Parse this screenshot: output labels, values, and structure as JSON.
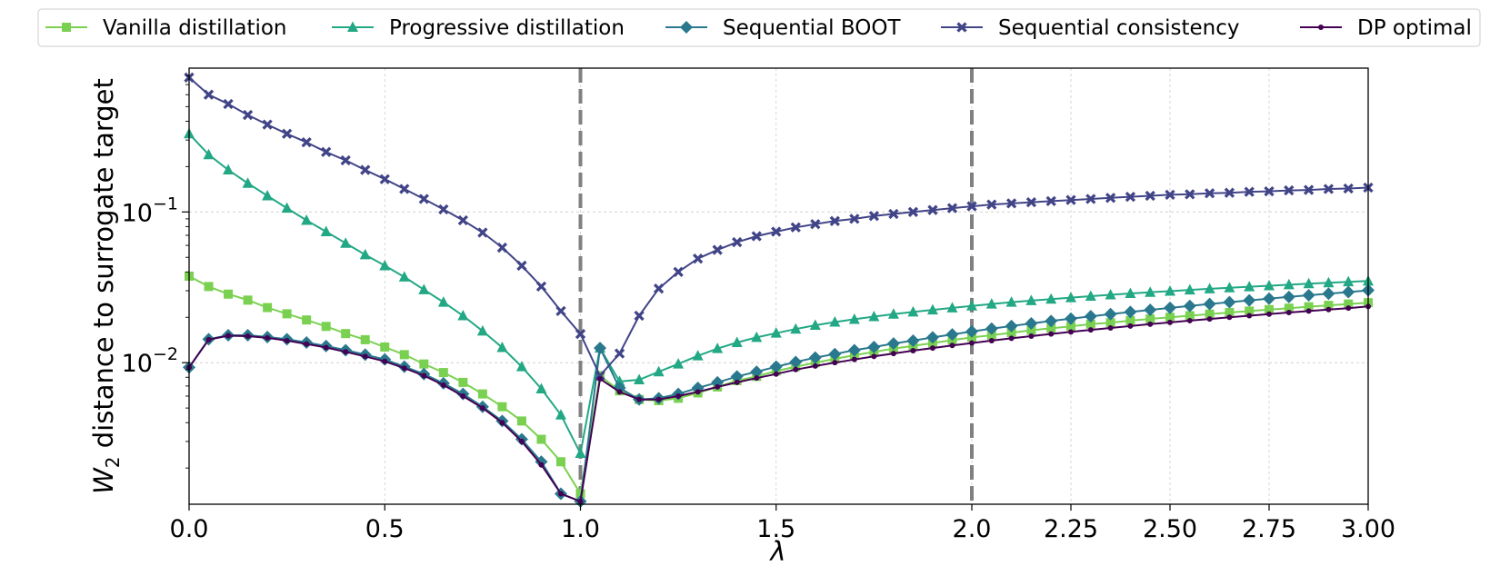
{
  "chart_data": {
    "type": "line",
    "title": "",
    "xlabel": "λ",
    "ylabel_main": "W",
    "ylabel_sub": "2",
    "ylabel_rest": " distance to surrogate target",
    "y_scale": "log",
    "ylim": [
      0.00115,
      0.9
    ],
    "grid": true,
    "legend_position": "top",
    "x_tick_labels": [
      "0.0",
      "0.5",
      "1.0",
      "1.5",
      "2.0",
      "2.25",
      "2.50",
      "2.75",
      "3.00"
    ],
    "y_ticks": [
      {
        "value": 0.1,
        "base": "10",
        "exp": "−1"
      },
      {
        "value": 0.01,
        "base": "10",
        "exp": "−2"
      }
    ],
    "vlines": [
      1.0,
      2.0
    ],
    "x": [
      0.0,
      0.05,
      0.1,
      0.15,
      0.2,
      0.25,
      0.3,
      0.35,
      0.4,
      0.45,
      0.5,
      0.55,
      0.6,
      0.65,
      0.7,
      0.75,
      0.8,
      0.85,
      0.9,
      0.95,
      1.0,
      1.05,
      1.1,
      1.15,
      1.2,
      1.25,
      1.3,
      1.35,
      1.4,
      1.45,
      1.5,
      1.55,
      1.6,
      1.65,
      1.7,
      1.75,
      1.8,
      1.85,
      1.9,
      1.95,
      2.0,
      2.05,
      2.1,
      2.15,
      2.2,
      2.25,
      2.3,
      2.35,
      2.4,
      2.45,
      2.5,
      2.55,
      2.6,
      2.65,
      2.7,
      2.75,
      2.8,
      2.85,
      2.9,
      2.95,
      3.0
    ],
    "series": [
      {
        "name": "Vanilla distillation",
        "color": "#7ad151",
        "marker": "square",
        "values": [
          0.0375,
          0.032,
          0.0285,
          0.026,
          0.0232,
          0.0211,
          0.0192,
          0.0174,
          0.0156,
          0.0142,
          0.0127,
          0.0113,
          0.0098,
          0.0086,
          0.0074,
          0.0062,
          0.0051,
          0.0041,
          0.0031,
          0.0022,
          0.00135,
          0.0082,
          0.0065,
          0.0057,
          0.0056,
          0.0058,
          0.0063,
          0.0069,
          0.0076,
          0.0081,
          0.0088,
          0.0094,
          0.01,
          0.0106,
          0.0112,
          0.0118,
          0.0124,
          0.0129,
          0.0135,
          0.0141,
          0.0147,
          0.0152,
          0.0158,
          0.0164,
          0.0169,
          0.0174,
          0.018,
          0.0184,
          0.019,
          0.0195,
          0.02,
          0.0205,
          0.021,
          0.0215,
          0.022,
          0.0225,
          0.023,
          0.0235,
          0.024,
          0.0245,
          0.025
        ]
      },
      {
        "name": "Progressive distillation",
        "color": "#22a884",
        "marker": "triangle",
        "values": [
          0.33,
          0.24,
          0.19,
          0.155,
          0.128,
          0.106,
          0.088,
          0.074,
          0.062,
          0.052,
          0.044,
          0.037,
          0.0305,
          0.0252,
          0.0205,
          0.0162,
          0.0126,
          0.0094,
          0.0067,
          0.0045,
          0.0025,
          0.0125,
          0.0075,
          0.0077,
          0.0087,
          0.0098,
          0.0111,
          0.0124,
          0.0136,
          0.0147,
          0.0157,
          0.0167,
          0.0177,
          0.0186,
          0.0194,
          0.0202,
          0.021,
          0.0217,
          0.0224,
          0.0231,
          0.0238,
          0.0245,
          0.0252,
          0.0258,
          0.0264,
          0.027,
          0.0276,
          0.0282,
          0.0288,
          0.0293,
          0.0298,
          0.0304,
          0.0309,
          0.0314,
          0.0319,
          0.0324,
          0.0329,
          0.0334,
          0.0339,
          0.0344,
          0.0348
        ]
      },
      {
        "name": "Sequential BOOT",
        "color": "#2a788e",
        "marker": "diamond",
        "values": [
          0.0093,
          0.0143,
          0.0152,
          0.0152,
          0.0148,
          0.0143,
          0.0136,
          0.0129,
          0.0121,
          0.0113,
          0.0105,
          0.0094,
          0.0084,
          0.0073,
          0.0062,
          0.0051,
          0.0041,
          0.0031,
          0.0022,
          0.00135,
          0.0012,
          0.0125,
          0.0068,
          0.0057,
          0.0058,
          0.0062,
          0.0068,
          0.0074,
          0.0081,
          0.0087,
          0.0094,
          0.0101,
          0.0108,
          0.0114,
          0.0121,
          0.0127,
          0.0134,
          0.014,
          0.0147,
          0.0154,
          0.0161,
          0.0168,
          0.0175,
          0.0182,
          0.0189,
          0.0196,
          0.0203,
          0.021,
          0.0217,
          0.0224,
          0.0231,
          0.0238,
          0.0245,
          0.0252,
          0.0259,
          0.0266,
          0.0273,
          0.028,
          0.0287,
          0.0294,
          0.0302
        ]
      },
      {
        "name": "Sequential consistency",
        "color": "#414487",
        "marker": "x",
        "values": [
          0.78,
          0.6,
          0.52,
          0.44,
          0.38,
          0.33,
          0.29,
          0.25,
          0.22,
          0.19,
          0.165,
          0.142,
          0.122,
          0.104,
          0.088,
          0.073,
          0.058,
          0.044,
          0.032,
          0.022,
          0.0155,
          0.0082,
          0.0115,
          0.0205,
          0.031,
          0.04,
          0.049,
          0.056,
          0.063,
          0.069,
          0.074,
          0.079,
          0.083,
          0.087,
          0.09,
          0.094,
          0.097,
          0.1,
          0.103,
          0.106,
          0.109,
          0.112,
          0.114,
          0.116,
          0.118,
          0.12,
          0.122,
          0.124,
          0.126,
          0.128,
          0.13,
          0.131,
          0.133,
          0.134,
          0.136,
          0.137,
          0.139,
          0.14,
          0.142,
          0.143,
          0.145
        ]
      },
      {
        "name": "DP optimal",
        "color": "#440154",
        "marker": "dot",
        "values": [
          0.0093,
          0.0142,
          0.0151,
          0.015,
          0.0146,
          0.014,
          0.0133,
          0.0126,
          0.0118,
          0.011,
          0.0102,
          0.0092,
          0.0082,
          0.0071,
          0.006,
          0.005,
          0.004,
          0.003,
          0.0021,
          0.00135,
          0.0012,
          0.0078,
          0.0064,
          0.0057,
          0.0057,
          0.006,
          0.0064,
          0.0069,
          0.0074,
          0.0079,
          0.0084,
          0.009,
          0.0095,
          0.01,
          0.0105,
          0.011,
          0.0115,
          0.012,
          0.0125,
          0.013,
          0.0135,
          0.014,
          0.0145,
          0.015,
          0.0155,
          0.016,
          0.0165,
          0.017,
          0.0175,
          0.018,
          0.0185,
          0.019,
          0.0195,
          0.02,
          0.0205,
          0.021,
          0.0215,
          0.022,
          0.0225,
          0.023,
          0.0236
        ]
      }
    ]
  }
}
